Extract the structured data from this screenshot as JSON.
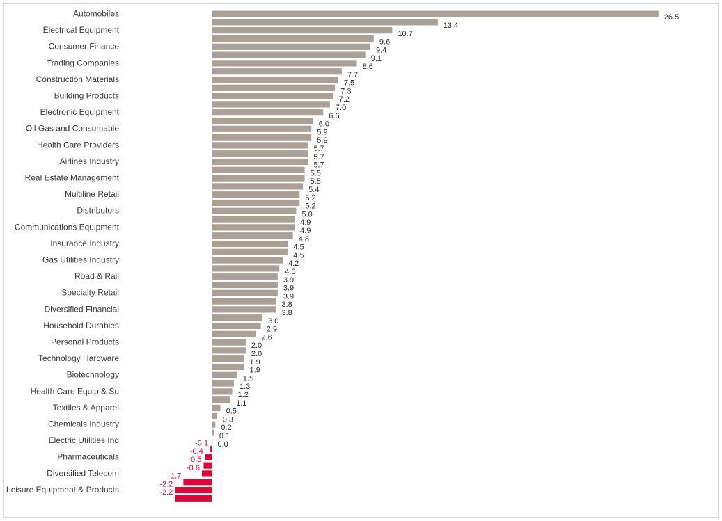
{
  "chart_data": {
    "type": "bar",
    "orientation": "horizontal",
    "categories": [
      "Automobiles",
      "",
      "Electrical Equipment",
      "",
      "Consumer Finance",
      "",
      "Trading Companies",
      "",
      "Construction Materials",
      "",
      "Building Products",
      "",
      "Electronic Equipment",
      "",
      "Oil Gas and Consumable",
      "",
      "Health Care Providers",
      "",
      "Airlines Industry",
      "",
      "Real Estate Management",
      "",
      "Multiline Retail",
      "",
      "Distributors",
      "",
      "Communications Equipment",
      "",
      "Insurance Industry",
      "",
      "Gas Utilities Industry",
      "",
      "Road & Rail",
      "",
      "Specialty Retail",
      "",
      "Diversified Financial",
      "",
      "Household Durables",
      "",
      "Personal Products",
      "",
      "Technology Hardware",
      "",
      "Biotechnology",
      "",
      "Health Care Equip & Su",
      "",
      "Textiles & Apparel",
      "",
      "Chemicals Industry",
      "",
      "Electric Utilities Ind",
      "",
      "Pharmaceuticals",
      "",
      "Diversified Telecom",
      "",
      "Leisure Equipment & Products",
      ""
    ],
    "values": [
      26.5,
      13.4,
      10.7,
      9.6,
      9.4,
      9.1,
      8.6,
      7.7,
      7.5,
      7.3,
      7.2,
      7.0,
      6.6,
      6.0,
      5.9,
      5.9,
      5.7,
      5.7,
      5.7,
      5.5,
      5.5,
      5.4,
      5.2,
      5.2,
      5.0,
      4.9,
      4.9,
      4.8,
      4.5,
      4.5,
      4.2,
      4.0,
      3.9,
      3.9,
      3.9,
      3.8,
      3.8,
      3.0,
      2.9,
      2.6,
      2.0,
      2.0,
      1.9,
      1.9,
      1.5,
      1.3,
      1.2,
      1.1,
      0.5,
      0.3,
      0.2,
      0.1,
      0.0,
      -0.1,
      -0.4,
      -0.5,
      -0.6,
      -1.7,
      -2.2,
      -2.2
    ],
    "value_labels": [
      "26.5",
      "13.4",
      "10.7",
      "9.6",
      "9.4",
      "9.1",
      "8.6",
      "7.7",
      "7.5",
      "7.3",
      "7.2",
      "7.0",
      "6.6",
      "6.0",
      "5.9",
      "5.9",
      "5.7",
      "5.7",
      "5.7",
      "5.5",
      "5.5",
      "5.4",
      "5.2",
      "5.2",
      "5.0",
      "4.9",
      "4.9",
      "4.8",
      "4.5",
      "4.5",
      "4.2",
      "4.0",
      "3.9",
      "3.9",
      "3.9",
      "3.8",
      "3.8",
      "3.0",
      "2.9",
      "2.6",
      "2.0",
      "2.0",
      "1.9",
      "1.9",
      "1.5",
      "1.3",
      "1.2",
      "1.1",
      "0.5",
      "0.3",
      "0.2",
      "0.1",
      "0.0",
      "-0.1",
      "-0.4",
      "-0.5",
      "-0.6",
      "-1.7",
      "-2.2",
      "-2.2"
    ],
    "xlim": [
      -2.2,
      26.5
    ],
    "grid": false,
    "legend": "none",
    "colors": {
      "positive": "#aba096",
      "negative": "#d8083a",
      "positive_label": "#2a2a2a",
      "negative_label": "#d8083a"
    }
  }
}
